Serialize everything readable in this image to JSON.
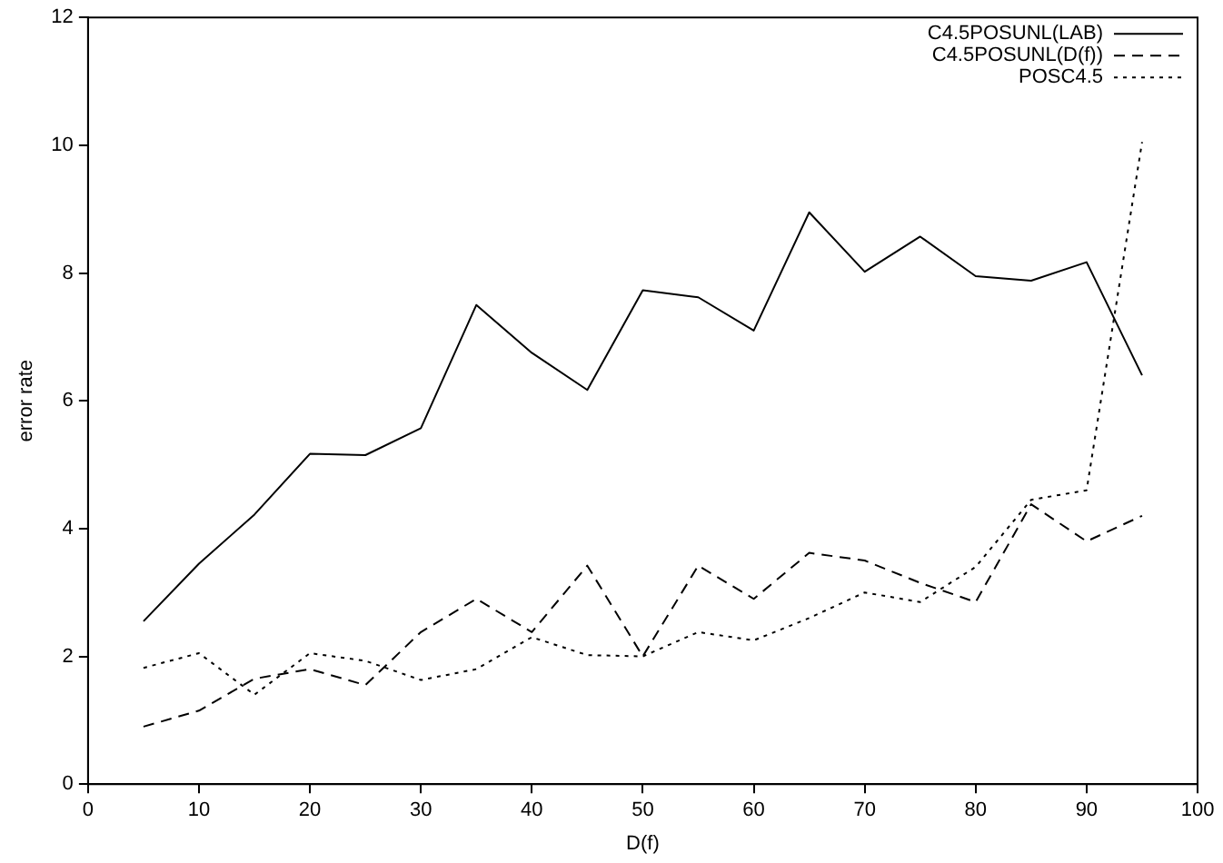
{
  "chart_data": {
    "type": "line",
    "xlabel": "D(f)",
    "ylabel": "error rate",
    "x": [
      5,
      10,
      15,
      20,
      25,
      30,
      35,
      40,
      45,
      50,
      55,
      60,
      65,
      70,
      75,
      80,
      85,
      90,
      95
    ],
    "xlim": [
      0,
      100
    ],
    "xticks": [
      0,
      10,
      20,
      30,
      40,
      50,
      60,
      70,
      80,
      90,
      100
    ],
    "ylim": [
      0,
      12
    ],
    "yticks": [
      0,
      2,
      4,
      6,
      8,
      10,
      12
    ],
    "grid": false,
    "legend": "top right",
    "marker": "none",
    "series": [
      {
        "name": "C4.5POSUNL(LAB)",
        "color": "#000000",
        "line_style": "solid",
        "values": [
          2.55,
          3.45,
          4.22,
          5.17,
          5.15,
          5.57,
          7.5,
          6.75,
          6.17,
          7.73,
          7.62,
          7.1,
          8.95,
          8.02,
          8.57,
          7.95,
          7.88,
          8.17,
          6.4
        ]
      },
      {
        "name": "C4.5POSUNL(D(f))",
        "color": "#000000",
        "line_style": "dashed",
        "values": [
          0.9,
          1.15,
          1.65,
          1.8,
          1.55,
          2.38,
          2.9,
          2.38,
          3.42,
          2.0,
          3.42,
          2.9,
          3.62,
          3.5,
          3.15,
          2.85,
          4.38,
          3.8,
          4.2
        ]
      },
      {
        "name": "POSC4.5",
        "color": "#000000",
        "line_style": "dotted",
        "values": [
          1.82,
          2.05,
          1.4,
          2.05,
          1.93,
          1.63,
          1.8,
          2.3,
          2.02,
          2.0,
          2.38,
          2.25,
          2.6,
          3.0,
          2.85,
          3.4,
          4.45,
          4.6,
          10.05
        ]
      }
    ]
  }
}
